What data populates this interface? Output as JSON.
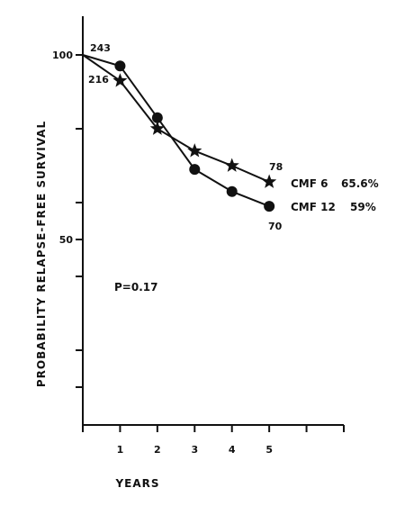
{
  "chart_data": {
    "type": "line",
    "title": "",
    "xlabel": "YEARS",
    "ylabel": "PROBABILITY RELAPSE-FREE SURVIVAL",
    "x_ticks": [
      "1",
      "2",
      "3",
      "4",
      "5"
    ],
    "y_tick_labels": [
      {
        "value": 100,
        "label": "100"
      },
      {
        "value": 50,
        "label": "50"
      }
    ],
    "xlim": [
      0,
      7
    ],
    "ylim": [
      0,
      105
    ],
    "grid": false,
    "series": [
      {
        "name": "CMF 6",
        "marker": "star",
        "value_label": "65.6%",
        "x": [
          0,
          1,
          2,
          3,
          4,
          5
        ],
        "values": [
          100,
          93,
          80,
          74,
          70,
          65.6
        ]
      },
      {
        "name": "CMF 12",
        "marker": "circle",
        "value_label": "59%",
        "x": [
          0,
          1,
          2,
          3,
          4,
          5
        ],
        "values": [
          100,
          97,
          83,
          69,
          63,
          59
        ]
      }
    ],
    "annotations": [
      {
        "text": "243",
        "x": 0,
        "y": 100
      },
      {
        "text": "216",
        "x": 0,
        "y": 100
      },
      {
        "text": "78",
        "x": 5,
        "y": 65.6
      },
      {
        "text": "70",
        "x": 5,
        "y": 59
      },
      {
        "text": "P=0.17"
      }
    ]
  }
}
